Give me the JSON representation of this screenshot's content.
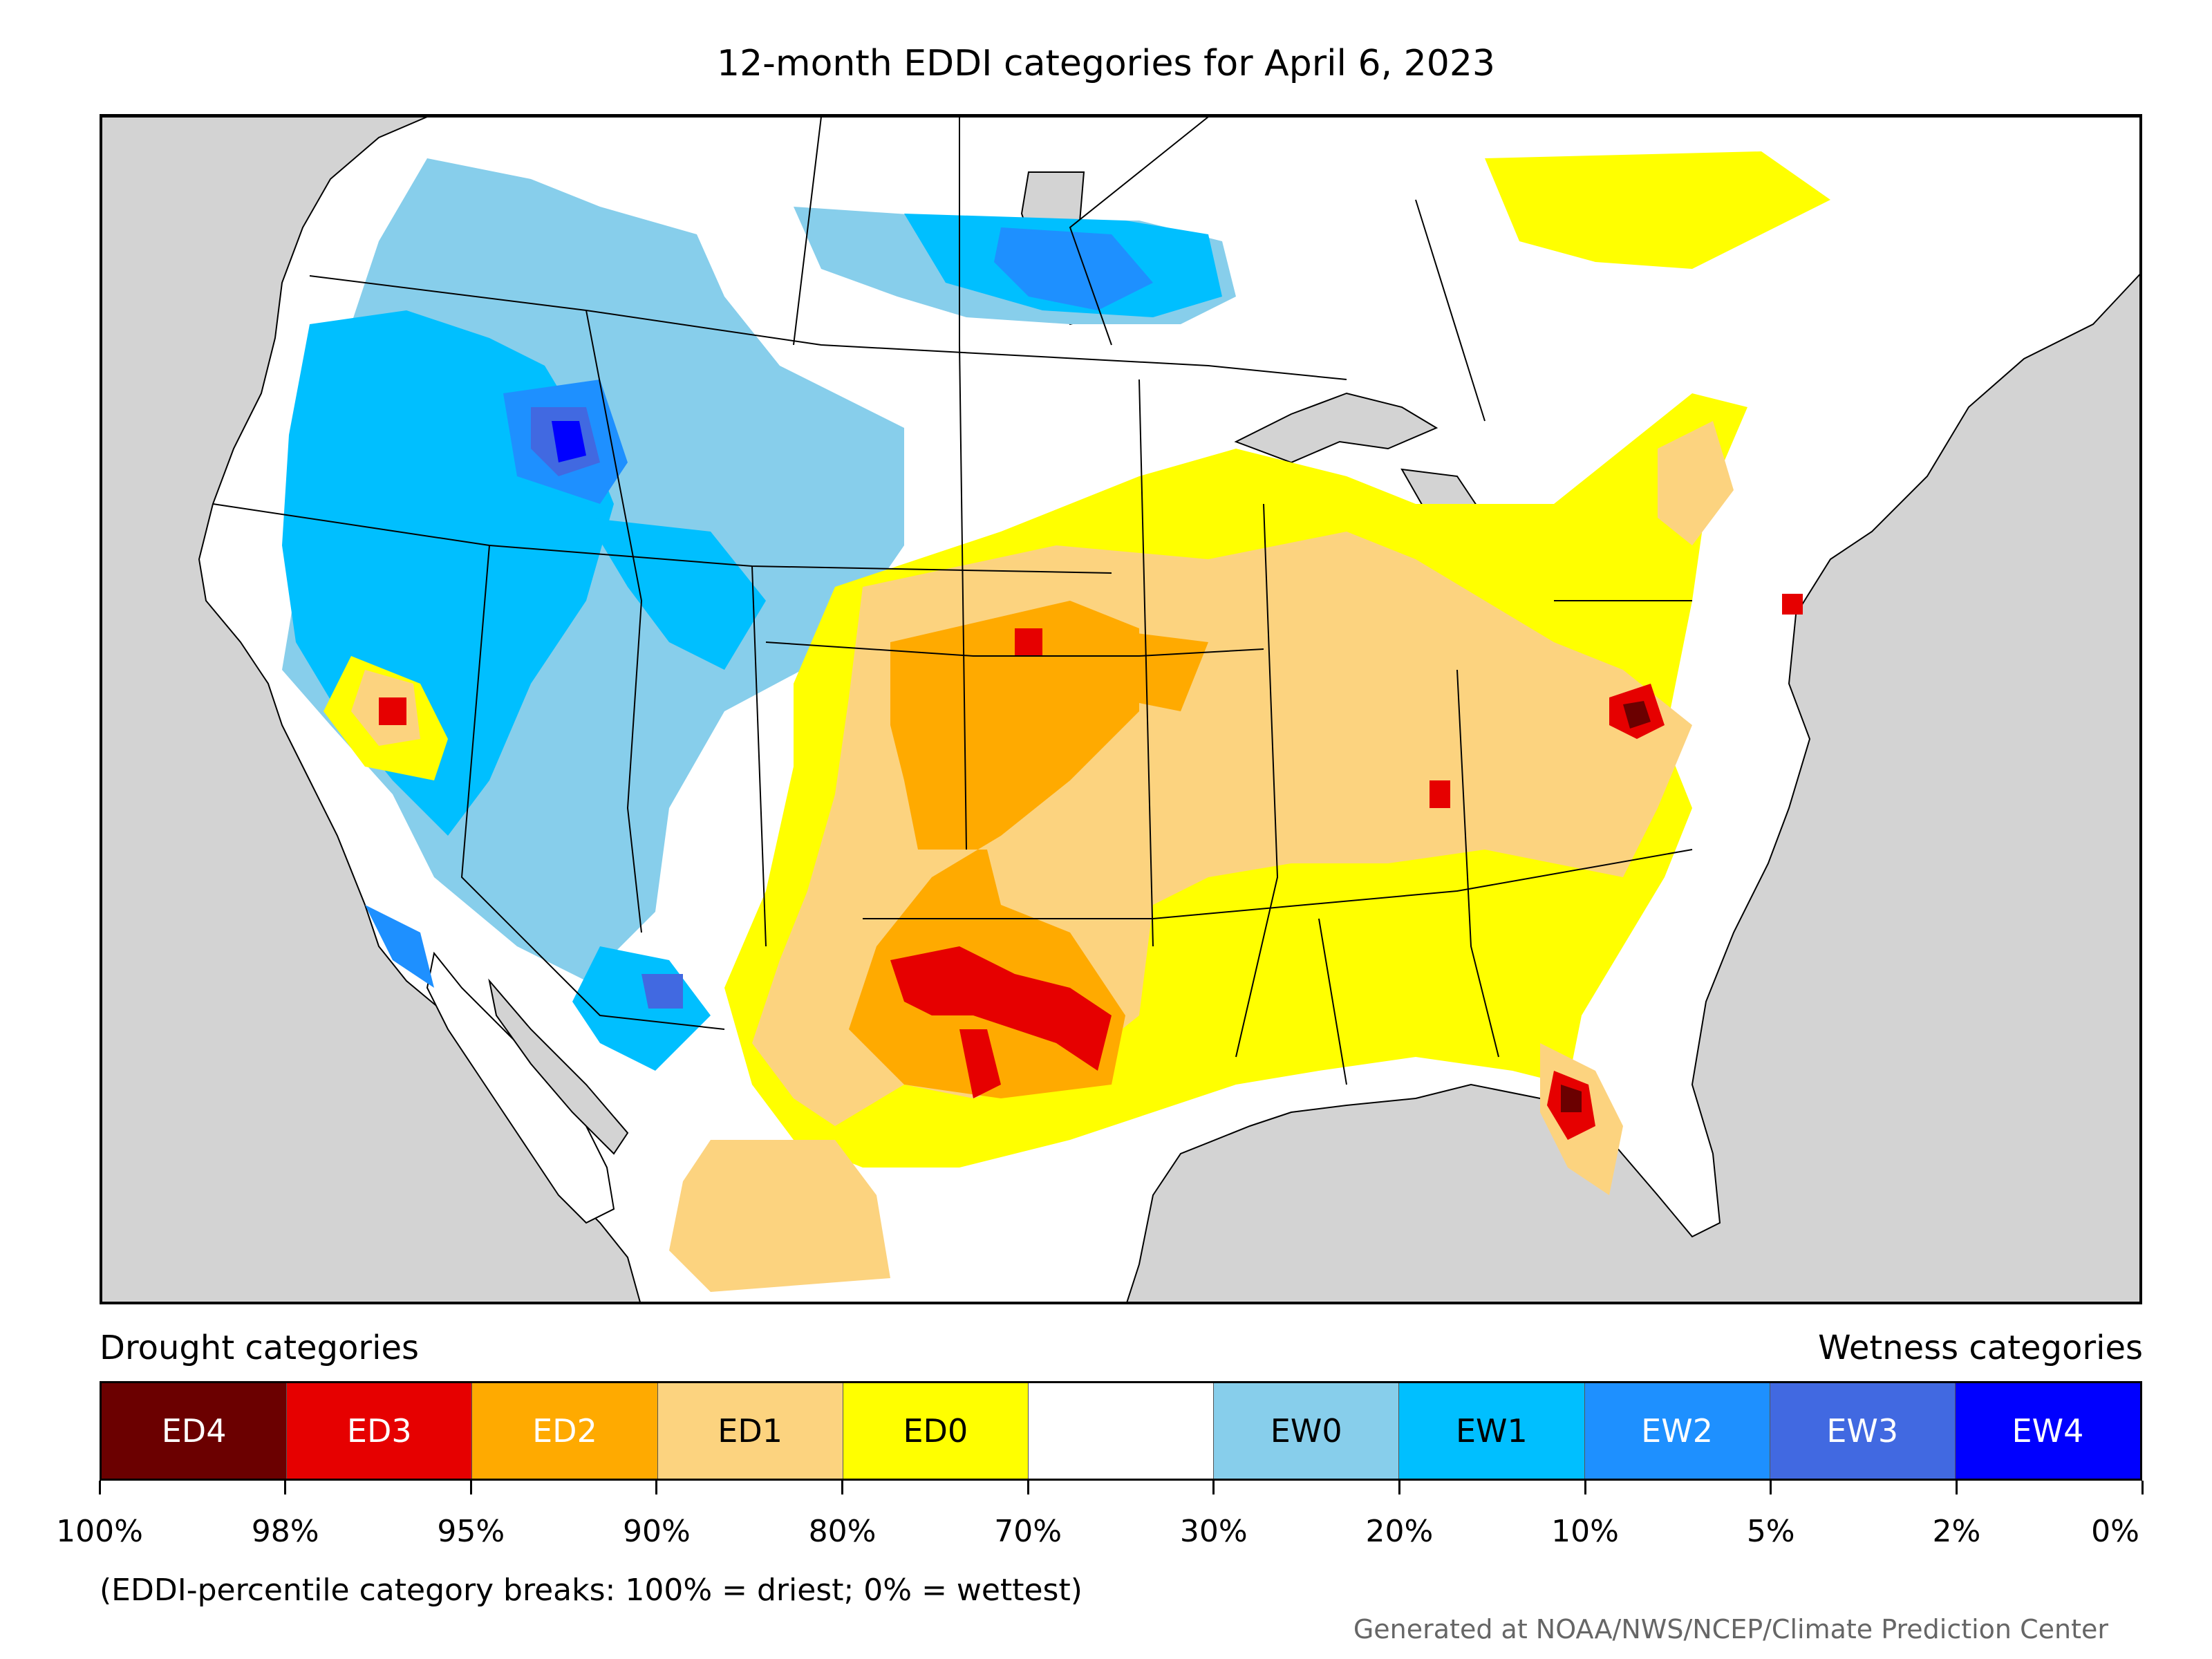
{
  "title": "12-month EDDI categories for April 6, 2023",
  "legend": {
    "drought_heading": "Drought categories",
    "wetness_heading": "Wetness categories",
    "categories": [
      {
        "label": "ED4",
        "color": "#6b0000",
        "text_color": "#ffffff"
      },
      {
        "label": "ED3",
        "color": "#e60000",
        "text_color": "#ffffff"
      },
      {
        "label": "ED2",
        "color": "#ffaa00",
        "text_color": "#ffffff"
      },
      {
        "label": "ED1",
        "color": "#fcd37f",
        "text_color": "#000000"
      },
      {
        "label": "ED0",
        "color": "#ffff00",
        "text_color": "#000000"
      },
      {
        "label": "",
        "color": "#ffffff",
        "text_color": "#000000"
      },
      {
        "label": "EW0",
        "color": "#87ceeb",
        "text_color": "#000000"
      },
      {
        "label": "EW1",
        "color": "#00bfff",
        "text_color": "#000000"
      },
      {
        "label": "EW2",
        "color": "#1e90ff",
        "text_color": "#ffffff"
      },
      {
        "label": "EW3",
        "color": "#4169e1",
        "text_color": "#ffffff"
      },
      {
        "label": "EW4",
        "color": "#0000ff",
        "text_color": "#ffffff"
      }
    ],
    "tick_labels": [
      "100%",
      "98%",
      "95%",
      "90%",
      "80%",
      "70%",
      "30%",
      "20%",
      "10%",
      "5%",
      "2%",
      "0%"
    ]
  },
  "note": "(EDDI-percentile category breaks: 100% = driest; 0% = wettest)",
  "credit": "Generated at NOAA/NWS/NCEP/Climate Prediction Center",
  "map": {
    "background_color": "#d3d3d3",
    "land_color": "#ffffff",
    "water_color": "#d3d3d3"
  }
}
